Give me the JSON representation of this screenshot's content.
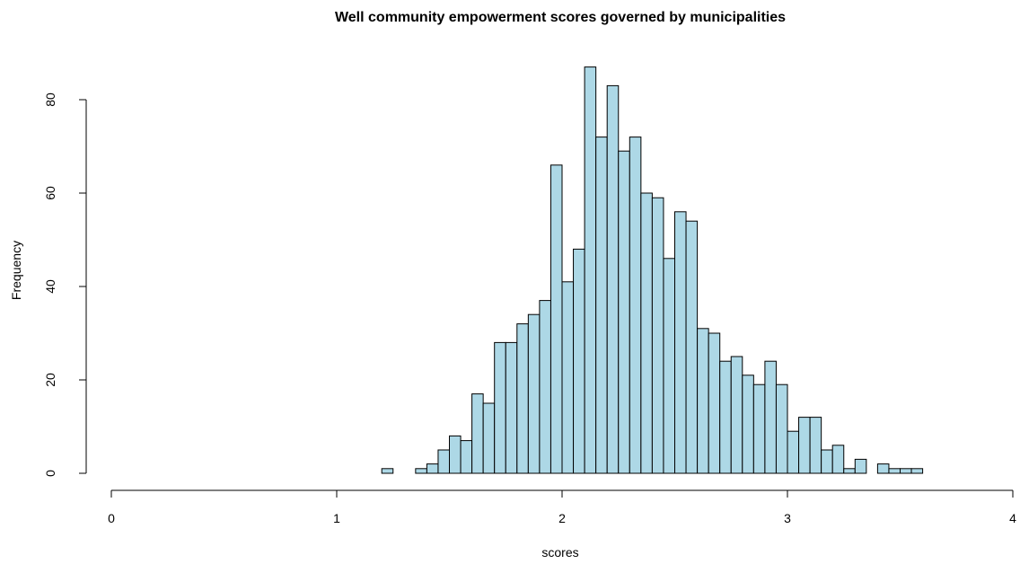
{
  "chart_data": {
    "type": "bar",
    "subtype": "histogram",
    "title": "Well community empowerment scores governed by municipalities",
    "xlabel": "scores",
    "ylabel": "Frequency",
    "bin_width": 0.05,
    "bin_starts": [
      1.2,
      1.25,
      1.3,
      1.35,
      1.4,
      1.45,
      1.5,
      1.55,
      1.6,
      1.65,
      1.7,
      1.75,
      1.8,
      1.85,
      1.9,
      1.95,
      2.0,
      2.05,
      2.1,
      2.15,
      2.2,
      2.25,
      2.3,
      2.35,
      2.4,
      2.45,
      2.5,
      2.55,
      2.6,
      2.65,
      2.7,
      2.75,
      2.8,
      2.85,
      2.9,
      2.95,
      3.0,
      3.05,
      3.1,
      3.15,
      3.2,
      3.25,
      3.3,
      3.35,
      3.4,
      3.45,
      3.5,
      3.55
    ],
    "values": [
      1,
      0,
      0,
      1,
      2,
      5,
      8,
      7,
      17,
      15,
      28,
      28,
      32,
      34,
      37,
      66,
      41,
      48,
      87,
      72,
      83,
      69,
      72,
      60,
      59,
      46,
      56,
      54,
      31,
      30,
      24,
      25,
      21,
      19,
      24,
      19,
      9,
      12,
      12,
      5,
      6,
      1,
      3,
      0,
      2,
      1,
      1,
      1
    ],
    "xlim": [
      0,
      4
    ],
    "ylim": [
      0,
      80
    ],
    "x_ticks": [
      0,
      1,
      2,
      3,
      4
    ],
    "x_tick_labels": [
      "0",
      "1",
      "2",
      "3",
      "4"
    ],
    "y_ticks": [
      0,
      20,
      40,
      60,
      80
    ],
    "y_tick_labels": [
      "0",
      "20",
      "40",
      "60",
      "80"
    ],
    "bar_color": "#ADD8E6",
    "edge_color": "#000000",
    "grid": false,
    "legend": "none"
  }
}
